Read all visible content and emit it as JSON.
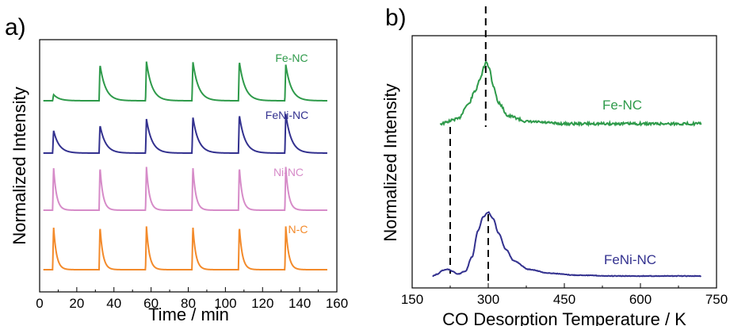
{
  "chart_data": [
    {
      "panel_label": "a)",
      "type": "line",
      "xlabel": "Time / min",
      "ylabel": "Normalized Intensity",
      "xlim": [
        0,
        160
      ],
      "x_ticks": [
        "0",
        "20",
        "40",
        "60",
        "80",
        "100",
        "120",
        "140",
        "160"
      ],
      "y_ticks": [],
      "pulse_times": [
        7,
        32,
        57,
        82,
        107,
        132
      ],
      "series": [
        {
          "name": "Fe-NC",
          "color": "#2e9a4a",
          "baseline": 0.0,
          "amplitudes": [
            0.06,
            0.35,
            0.38,
            0.38,
            0.38,
            0.35
          ],
          "decay": 3.0
        },
        {
          "name": "FeNi-NC",
          "color": "#33318f",
          "baseline": 0.0,
          "amplitudes": [
            0.22,
            0.27,
            0.33,
            0.35,
            0.37,
            0.38
          ],
          "decay": 3.0
        },
        {
          "name": "Ni-NC",
          "color": "#d68bc8",
          "baseline": 0.0,
          "amplitudes": [
            0.42,
            0.42,
            0.42,
            0.42,
            0.42,
            0.42
          ],
          "decay": 1.6
        },
        {
          "name": "N-C",
          "color": "#f38a2a",
          "baseline": 0.0,
          "amplitudes": [
            0.42,
            0.42,
            0.42,
            0.42,
            0.42,
            0.42
          ],
          "decay": 1.6
        }
      ]
    },
    {
      "panel_label": "b)",
      "type": "line",
      "xlabel": "CO Desorption Temperature / K",
      "ylabel": "Normalized Intensity",
      "xlim": [
        150,
        750
      ],
      "x_ticks": [
        "150",
        "300",
        "450",
        "600",
        "750"
      ],
      "y_ticks": [],
      "reference_lines": [
        225,
        295,
        300
      ],
      "series": [
        {
          "name": "Fe-NC",
          "color": "#2e9a4a",
          "x": [
            205,
            240,
            260,
            275,
            285,
            292,
            296,
            302,
            310,
            320,
            340,
            380,
            450,
            550,
            650,
            720
          ],
          "y": [
            0.0,
            0.05,
            0.2,
            0.35,
            0.48,
            0.6,
            0.66,
            0.58,
            0.4,
            0.22,
            0.08,
            0.02,
            0.0,
            0.0,
            0.0,
            0.0
          ]
        },
        {
          "name": "FeNi-NC",
          "color": "#33318f",
          "x": [
            190,
            200,
            210,
            220,
            230,
            240,
            255,
            268,
            280,
            290,
            300,
            310,
            320,
            335,
            350,
            380,
            420,
            470,
            550,
            650,
            720
          ],
          "y": [
            0.0,
            0.02,
            0.06,
            0.07,
            0.05,
            0.02,
            0.05,
            0.2,
            0.48,
            0.62,
            0.67,
            0.6,
            0.45,
            0.28,
            0.16,
            0.07,
            0.03,
            0.01,
            0.0,
            0.0,
            0.0
          ]
        }
      ]
    }
  ]
}
